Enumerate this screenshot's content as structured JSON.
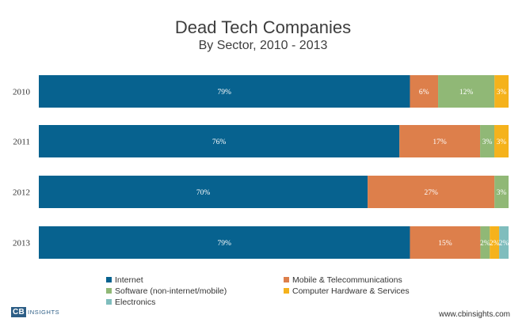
{
  "chart_data": {
    "type": "bar",
    "orientation": "horizontal",
    "stacked": true,
    "title": "Dead Tech Companies",
    "subtitle": "By Sector, 2010 - 2013",
    "categories": [
      "2010",
      "2011",
      "2012",
      "2013"
    ],
    "series": [
      {
        "name": "Internet",
        "color": "#07628f",
        "values": [
          79,
          76,
          70,
          79
        ],
        "labels": [
          "79%",
          "76%",
          "70%",
          "79%"
        ]
      },
      {
        "name": "Mobile & Telecommunications",
        "color": "#dd7f4b",
        "values": [
          6,
          17,
          27,
          15
        ],
        "labels": [
          "6%",
          "17%",
          "27%",
          "15%"
        ]
      },
      {
        "name": "Software (non-internet/mobile)",
        "color": "#90b876",
        "values": [
          12,
          3,
          3,
          2
        ],
        "labels": [
          "12%",
          "3%",
          "3%",
          "2%"
        ]
      },
      {
        "name": "Computer Hardware & Services",
        "color": "#f5b21c",
        "values": [
          3,
          3,
          0,
          2
        ],
        "labels": [
          "3%",
          "3%",
          "",
          "2%"
        ]
      },
      {
        "name": "Electronics",
        "color": "#7fbdbd",
        "values": [
          0,
          0,
          0,
          2
        ],
        "labels": [
          "",
          "",
          "",
          "2%"
        ]
      }
    ],
    "legend_position": "bottom",
    "grid": false
  },
  "brand": {
    "cb": "CB",
    "insights": "INSIGHTS"
  },
  "footer": {
    "url": "www.cbinsights.com"
  }
}
